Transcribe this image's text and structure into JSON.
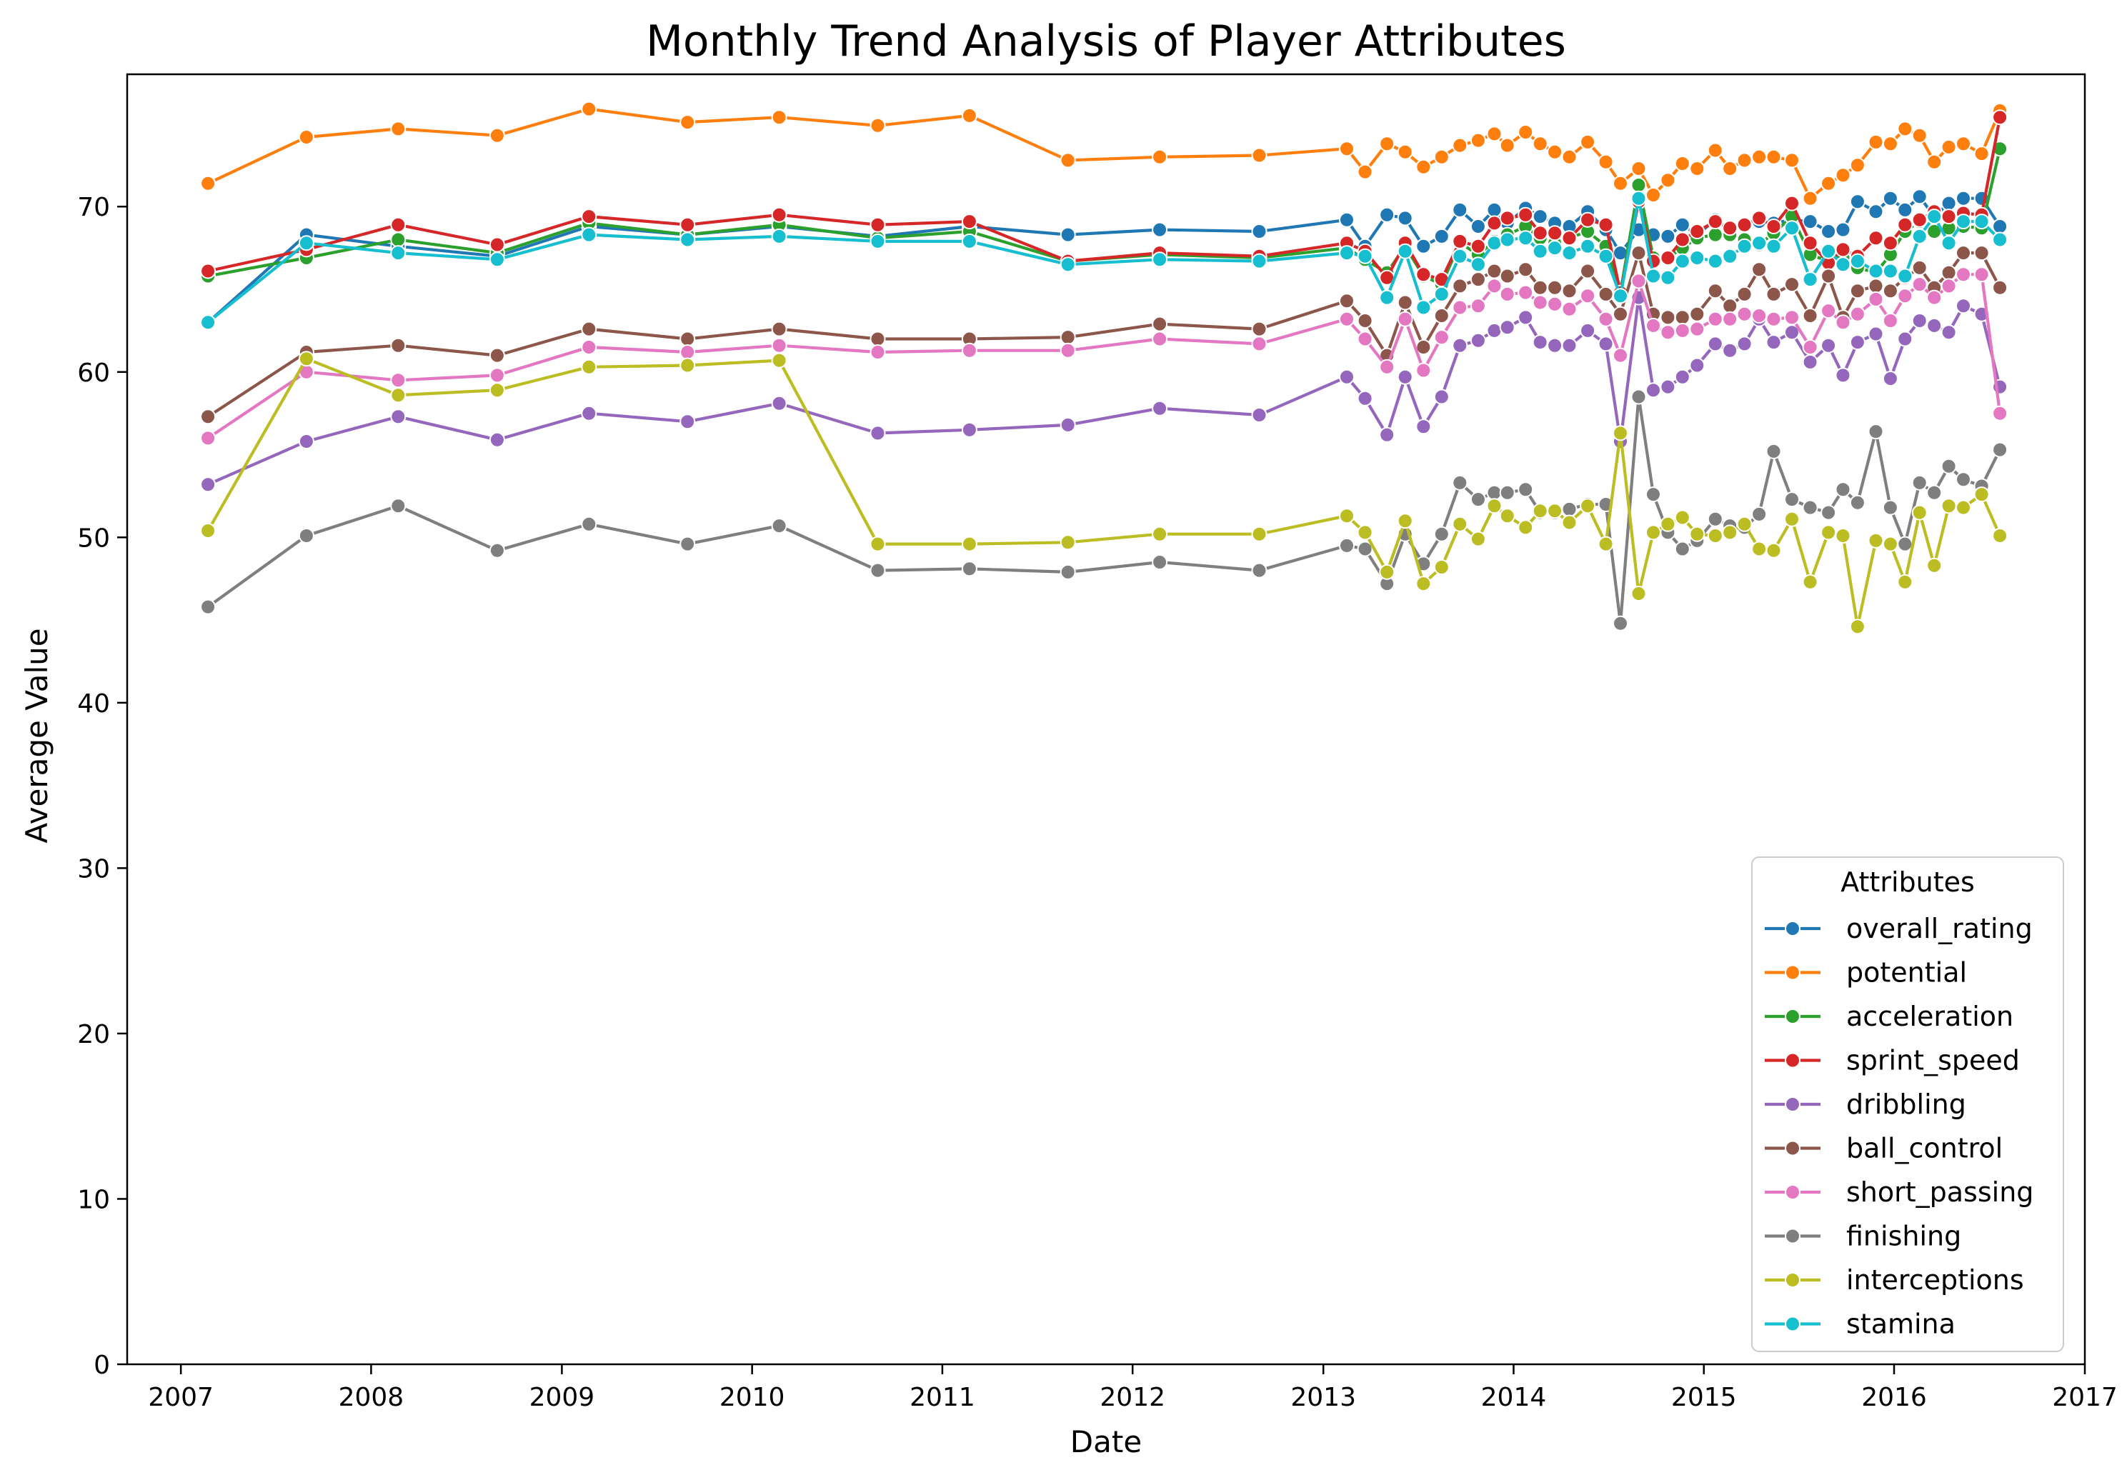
{
  "chart_data": {
    "type": "line",
    "title": "Monthly Trend Analysis of Player Attributes",
    "xlabel": "Date",
    "ylabel": "Average Value",
    "xlim": [
      "2006-09-20",
      "2017-01-01"
    ],
    "ylim": [
      0,
      78
    ],
    "x_ticks": [
      "2007",
      "2008",
      "2009",
      "2010",
      "2011",
      "2012",
      "2013",
      "2014",
      "2015",
      "2016",
      "2017"
    ],
    "y_ticks": [
      0,
      10,
      20,
      30,
      40,
      50,
      60,
      70
    ],
    "grid": false,
    "legend": {
      "title": "Attributes",
      "placement": "lower-right"
    },
    "x": [
      "2007-02-22",
      "2007-08-30",
      "2008-02-22",
      "2008-08-30",
      "2009-02-22",
      "2009-08-30",
      "2010-02-22",
      "2010-08-30",
      "2011-02-22",
      "2011-08-30",
      "2012-02-22",
      "2012-08-31",
      "2013-02-15",
      "2013-03-22",
      "2013-05-03",
      "2013-06-07",
      "2013-07-12",
      "2013-08-16",
      "2013-09-20",
      "2013-10-25",
      "2013-11-25",
      "2013-12-20",
      "2014-01-24",
      "2014-02-21",
      "2014-03-21",
      "2014-04-18",
      "2014-05-23",
      "2014-06-27",
      "2014-07-25",
      "2014-08-29",
      "2014-09-26",
      "2014-10-24",
      "2014-11-21",
      "2014-12-19",
      "2015-01-23",
      "2015-02-20",
      "2015-03-20",
      "2015-04-17",
      "2015-05-15",
      "2015-06-19",
      "2015-07-24",
      "2015-08-28",
      "2015-09-25",
      "2015-10-23",
      "2015-11-27",
      "2015-12-25",
      "2016-01-22",
      "2016-02-19",
      "2016-03-18",
      "2016-04-15",
      "2016-05-13",
      "2016-06-17",
      "2016-07-22"
    ],
    "series": [
      {
        "name": "overall_rating",
        "color": "#1f77b4",
        "values": [
          63.0,
          68.3,
          67.6,
          67.0,
          68.8,
          68.3,
          68.8,
          68.2,
          68.8,
          68.3,
          68.6,
          68.5,
          69.2,
          67.6,
          69.5,
          69.3,
          67.6,
          68.2,
          69.8,
          68.8,
          69.8,
          69.0,
          69.9,
          69.4,
          69.0,
          68.8,
          69.7,
          68.6,
          67.2,
          68.6,
          68.3,
          68.2,
          68.9,
          68.3,
          69.2,
          68.6,
          68.9,
          69.1,
          69.0,
          69.2,
          69.1,
          68.5,
          68.6,
          70.3,
          69.7,
          70.5,
          69.8,
          70.6,
          69.4,
          70.2,
          70.5,
          70.5,
          68.8
        ]
      },
      {
        "name": "potential",
        "color": "#ff7f0e",
        "values": [
          71.4,
          74.2,
          74.7,
          74.3,
          75.9,
          75.1,
          75.4,
          74.9,
          75.5,
          72.8,
          73.0,
          73.1,
          73.5,
          72.1,
          73.8,
          73.3,
          72.4,
          73.0,
          73.7,
          74.0,
          74.4,
          73.7,
          74.5,
          73.8,
          73.3,
          73.0,
          73.9,
          72.7,
          71.4,
          72.3,
          70.7,
          71.6,
          72.6,
          72.3,
          73.4,
          72.3,
          72.8,
          73.0,
          73.0,
          72.8,
          70.5,
          71.4,
          71.9,
          72.5,
          73.9,
          73.8,
          74.7,
          74.3,
          72.7,
          73.6,
          73.8,
          73.2,
          75.8
        ]
      },
      {
        "name": "acceleration",
        "color": "#2ca02c",
        "values": [
          65.8,
          66.9,
          68.0,
          67.2,
          69.0,
          68.3,
          68.9,
          68.1,
          68.5,
          66.7,
          67.1,
          66.9,
          67.5,
          66.8,
          66.0,
          67.6,
          65.8,
          65.3,
          67.8,
          67.1,
          67.9,
          68.3,
          68.8,
          68.1,
          67.8,
          68.1,
          68.5,
          67.6,
          64.8,
          71.3,
          66.9,
          66.9,
          67.5,
          68.1,
          68.3,
          68.3,
          68.0,
          67.7,
          68.4,
          69.4,
          67.1,
          66.7,
          66.9,
          66.3,
          66.0,
          67.1,
          68.5,
          69.1,
          68.5,
          68.7,
          68.8,
          68.7,
          73.5
        ]
      },
      {
        "name": "sprint_speed",
        "color": "#d62728",
        "values": [
          66.1,
          67.4,
          68.9,
          67.7,
          69.4,
          68.9,
          69.5,
          68.9,
          69.1,
          66.7,
          67.2,
          67.0,
          67.8,
          67.3,
          65.7,
          67.8,
          65.9,
          65.6,
          67.9,
          67.6,
          69.0,
          69.3,
          69.5,
          68.4,
          68.4,
          68.1,
          69.2,
          68.9,
          64.8,
          70.3,
          66.7,
          66.9,
          68.0,
          68.5,
          69.1,
          68.7,
          68.9,
          69.3,
          68.8,
          70.2,
          67.8,
          66.6,
          67.4,
          67.0,
          68.1,
          67.8,
          68.9,
          69.2,
          69.7,
          69.4,
          69.6,
          69.5,
          75.4
        ]
      },
      {
        "name": "dribbling",
        "color": "#9467bd",
        "values": [
          53.2,
          55.8,
          57.3,
          55.9,
          57.5,
          57.0,
          58.1,
          56.3,
          56.5,
          56.8,
          57.8,
          57.4,
          59.7,
          58.4,
          56.2,
          59.7,
          56.7,
          58.5,
          61.6,
          61.9,
          62.5,
          62.7,
          63.3,
          61.8,
          61.6,
          61.6,
          62.5,
          61.7,
          55.8,
          64.5,
          58.9,
          59.1,
          59.7,
          60.4,
          61.7,
          61.3,
          61.7,
          63.2,
          61.8,
          62.4,
          60.6,
          61.6,
          59.8,
          61.8,
          62.3,
          59.6,
          62.0,
          63.1,
          62.8,
          62.4,
          64.0,
          63.5,
          59.1
        ]
      },
      {
        "name": "ball_control",
        "color": "#8c564b",
        "values": [
          57.3,
          61.2,
          61.6,
          61.0,
          62.6,
          62.0,
          62.6,
          62.0,
          62.0,
          62.1,
          62.9,
          62.6,
          64.3,
          63.1,
          61.0,
          64.2,
          61.5,
          63.4,
          65.2,
          65.6,
          66.1,
          65.8,
          66.2,
          65.1,
          65.1,
          64.9,
          66.1,
          64.7,
          63.5,
          67.2,
          63.5,
          63.3,
          63.3,
          63.5,
          64.9,
          64.0,
          64.7,
          66.2,
          64.7,
          65.3,
          63.4,
          65.8,
          63.3,
          64.9,
          65.2,
          64.9,
          65.7,
          66.3,
          65.1,
          66.0,
          67.2,
          67.2,
          65.1
        ]
      },
      {
        "name": "short_passing",
        "color": "#e377c2",
        "values": [
          56.0,
          60.0,
          59.5,
          59.8,
          61.5,
          61.2,
          61.6,
          61.2,
          61.3,
          61.3,
          62.0,
          61.7,
          63.2,
          62.0,
          60.3,
          63.2,
          60.1,
          62.1,
          63.9,
          64.0,
          65.2,
          64.7,
          64.8,
          64.2,
          64.1,
          63.8,
          64.6,
          63.2,
          61.0,
          65.5,
          62.8,
          62.4,
          62.5,
          62.6,
          63.2,
          63.2,
          63.5,
          63.4,
          63.2,
          63.3,
          61.5,
          63.7,
          63.0,
          63.5,
          64.4,
          63.1,
          64.6,
          65.3,
          64.5,
          65.2,
          65.9,
          65.9,
          57.5
        ]
      },
      {
        "name": "finishing",
        "color": "#7f7f7f",
        "values": [
          45.8,
          50.1,
          51.9,
          49.2,
          50.8,
          49.6,
          50.7,
          48.0,
          48.1,
          47.9,
          48.5,
          48.0,
          49.5,
          49.3,
          47.2,
          50.2,
          48.4,
          50.2,
          53.3,
          52.3,
          52.7,
          52.7,
          52.9,
          51.5,
          51.5,
          51.7,
          52.0,
          52.0,
          44.8,
          58.5,
          52.6,
          50.3,
          49.3,
          49.8,
          51.1,
          50.7,
          50.6,
          51.4,
          55.2,
          52.3,
          51.8,
          51.5,
          52.9,
          52.1,
          56.4,
          51.8,
          49.6,
          53.3,
          52.7,
          54.3,
          53.5,
          53.1,
          55.3
        ]
      },
      {
        "name": "interceptions",
        "color": "#bcbd22",
        "values": [
          50.4,
          60.8,
          58.6,
          58.9,
          60.3,
          60.4,
          60.7,
          49.6,
          49.6,
          49.7,
          50.2,
          50.2,
          51.3,
          50.3,
          47.9,
          51.0,
          47.2,
          48.2,
          50.8,
          49.9,
          51.9,
          51.3,
          50.6,
          51.6,
          51.6,
          50.9,
          51.9,
          49.6,
          56.3,
          46.6,
          50.3,
          50.8,
          51.2,
          50.2,
          50.1,
          50.3,
          50.8,
          49.3,
          49.2,
          51.1,
          47.3,
          50.3,
          50.1,
          44.6,
          49.8,
          49.6,
          47.3,
          51.5,
          48.3,
          51.9,
          51.8,
          52.6,
          50.1
        ]
      },
      {
        "name": "stamina",
        "color": "#17becf",
        "values": [
          63.0,
          67.8,
          67.2,
          66.8,
          68.3,
          68.0,
          68.2,
          67.9,
          67.9,
          66.5,
          66.8,
          66.7,
          67.2,
          67.0,
          64.5,
          67.3,
          63.9,
          64.7,
          67.0,
          66.5,
          67.8,
          68.0,
          68.1,
          67.3,
          67.5,
          67.2,
          67.6,
          67.0,
          64.6,
          70.5,
          65.8,
          65.7,
          66.7,
          66.9,
          66.7,
          67.0,
          67.6,
          67.8,
          67.6,
          68.7,
          65.6,
          67.3,
          66.5,
          66.7,
          66.1,
          66.1,
          65.8,
          68.2,
          69.4,
          67.8,
          69.1,
          69.1,
          68.0
        ]
      }
    ]
  }
}
